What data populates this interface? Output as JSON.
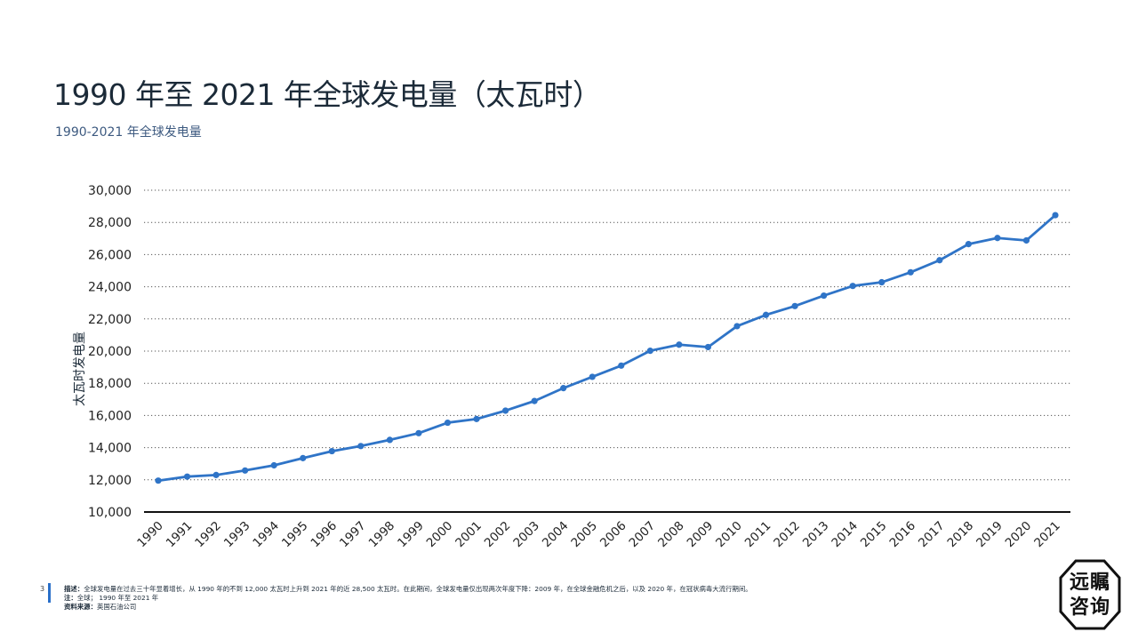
{
  "slide": {
    "title": "1990 年至 2021 年全球发电量（太瓦时）",
    "subtitle": "1990-2021 年全球发电量",
    "page_number": "3"
  },
  "footnotes": {
    "desc_label": "描述：",
    "desc_text": "全球发电量在过去三十年显着增长，从 1990 年的不到 12,000 太瓦时上升到 2021 年的近 28,500 太瓦时。在此期间，全球发电量仅出现两次年度下降：2009 年，在全球金融危机之后，以及 2020 年，在冠状病毒大流行期间。",
    "note_label": "注：",
    "note_text": "全球； 1990 年至 2021 年",
    "source_label": "资料来源：",
    "source_text": "英国石油公司"
  },
  "logo": {
    "line1": "远瞩",
    "line2": "咨询"
  },
  "chart_data": {
    "type": "line",
    "ylabel": "太瓦时发电量",
    "xlabel": "",
    "ylim": [
      10000,
      30000
    ],
    "yticks": [
      10000,
      12000,
      14000,
      16000,
      18000,
      20000,
      22000,
      24000,
      26000,
      28000,
      30000
    ],
    "ytick_labels": [
      "10,000",
      "12,000",
      "14,000",
      "16,000",
      "18,000",
      "20,000",
      "22,000",
      "24,000",
      "26,000",
      "28,000",
      "30,000"
    ],
    "grid": "horizontal-dotted",
    "color": "#2f74c7",
    "categories": [
      "1990",
      "1991",
      "1992",
      "1993",
      "1994",
      "1995",
      "1996",
      "1997",
      "1998",
      "1999",
      "2000",
      "2001",
      "2002",
      "2003",
      "2004",
      "2005",
      "2006",
      "2007",
      "2008",
      "2009",
      "2010",
      "2011",
      "2012",
      "2013",
      "2014",
      "2015",
      "2016",
      "2017",
      "2018",
      "2019",
      "2020",
      "2021"
    ],
    "values": [
      11950,
      12200,
      12300,
      12580,
      12900,
      13350,
      13780,
      14100,
      14480,
      14900,
      15550,
      15780,
      16300,
      16900,
      17700,
      18400,
      19100,
      20020,
      20400,
      20250,
      21550,
      22250,
      22800,
      23450,
      24050,
      24280,
      24900,
      25650,
      26650,
      27030,
      26880,
      28450
    ]
  }
}
